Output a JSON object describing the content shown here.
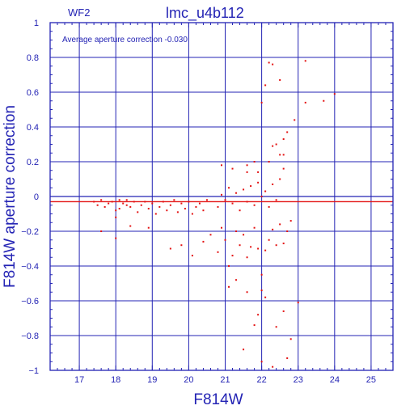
{
  "chart_data": {
    "type": "scatter",
    "title": "lmc_u4b112",
    "subtitle": "WF2",
    "annotation": "Average aperture correction   -0.030",
    "xlabel": "F814W",
    "ylabel": "F814W aperture correction",
    "xlim": [
      16.2,
      25.6
    ],
    "ylim": [
      -1.0,
      1.0
    ],
    "x_ticks": [
      17,
      18,
      19,
      20,
      21,
      22,
      23,
      24,
      25
    ],
    "x_tick_labels": [
      "17",
      "18",
      "19",
      "20",
      "21",
      "22",
      "23",
      "24",
      "25"
    ],
    "y_ticks": [
      -1,
      -0.8,
      -0.6,
      -0.4,
      -0.2,
      0,
      0.2,
      0.4,
      0.6,
      0.8,
      1
    ],
    "y_tick_labels": [
      "−1",
      "−0.8",
      "−0.6",
      "−0.4",
      "−0.2",
      "0",
      "0.2",
      "0.4",
      "0.6",
      "0.8",
      "1"
    ],
    "grid": true,
    "reference_lines": {
      "zero_line": 0,
      "average_line": -0.03
    },
    "colors": {
      "axes": "#2323b4",
      "grid": "#2323b4",
      "points": "#e31111",
      "average_line": "#e31111"
    },
    "series": [
      {
        "values": [
          [
            22.2,
            0.77
          ],
          [
            22.3,
            0.76
          ],
          [
            23.2,
            0.78
          ],
          [
            22.5,
            0.67
          ],
          [
            22.1,
            0.64
          ],
          [
            23.7,
            0.55
          ],
          [
            24.0,
            0.59
          ],
          [
            23.2,
            0.54
          ],
          [
            22.0,
            0.54
          ],
          [
            22.9,
            0.44
          ],
          [
            22.7,
            0.37
          ],
          [
            22.6,
            0.33
          ],
          [
            22.4,
            0.3
          ],
          [
            22.3,
            0.29
          ],
          [
            22.5,
            0.24
          ],
          [
            22.6,
            0.24
          ],
          [
            21.8,
            0.2
          ],
          [
            21.6,
            0.18
          ],
          [
            22.2,
            0.2
          ],
          [
            21.2,
            0.16
          ],
          [
            20.9,
            0.18
          ],
          [
            21.9,
            0.14
          ],
          [
            22.6,
            0.16
          ],
          [
            21.6,
            0.14
          ],
          [
            17.4,
            -0.03
          ],
          [
            17.5,
            -0.05
          ],
          [
            17.6,
            -0.02
          ],
          [
            17.7,
            -0.06
          ],
          [
            17.8,
            -0.04
          ],
          [
            17.9,
            -0.03
          ],
          [
            18.0,
            -0.08
          ],
          [
            18.0,
            -0.12
          ],
          [
            18.1,
            -0.02
          ],
          [
            18.1,
            -0.07
          ],
          [
            18.2,
            -0.04
          ],
          [
            18.3,
            -0.05
          ],
          [
            18.3,
            -0.02
          ],
          [
            18.4,
            -0.06
          ],
          [
            18.5,
            -0.03
          ],
          [
            18.6,
            -0.09
          ],
          [
            18.7,
            -0.05
          ],
          [
            18.8,
            -0.03
          ],
          [
            18.9,
            -0.07
          ],
          [
            19.0,
            -0.04
          ],
          [
            19.1,
            -0.1
          ],
          [
            19.2,
            -0.06
          ],
          [
            19.3,
            -0.03
          ],
          [
            19.4,
            -0.08
          ],
          [
            19.5,
            -0.05
          ],
          [
            19.6,
            -0.02
          ],
          [
            19.7,
            -0.09
          ],
          [
            19.8,
            -0.04
          ],
          [
            19.9,
            -0.07
          ],
          [
            20.0,
            -0.03
          ],
          [
            20.1,
            -0.1
          ],
          [
            20.2,
            -0.06
          ],
          [
            20.3,
            -0.04
          ],
          [
            20.4,
            -0.08
          ],
          [
            20.5,
            -0.02
          ],
          [
            17.6,
            -0.2
          ],
          [
            18.0,
            -0.24
          ],
          [
            18.4,
            -0.17
          ],
          [
            18.9,
            -0.18
          ],
          [
            19.5,
            -0.3
          ],
          [
            19.8,
            -0.28
          ],
          [
            20.1,
            -0.34
          ],
          [
            20.4,
            -0.26
          ],
          [
            20.6,
            -0.22
          ],
          [
            20.8,
            -0.32
          ],
          [
            20.9,
            -0.18
          ],
          [
            21.0,
            -0.25
          ],
          [
            21.1,
            -0.4
          ],
          [
            21.2,
            -0.34
          ],
          [
            21.3,
            -0.2
          ],
          [
            21.4,
            -0.28
          ],
          [
            21.5,
            -0.22
          ],
          [
            21.6,
            -0.35
          ],
          [
            21.7,
            -0.29
          ],
          [
            21.8,
            -0.18
          ],
          [
            21.9,
            -0.3
          ],
          [
            22.0,
            -0.45
          ],
          [
            22.1,
            -0.31
          ],
          [
            22.2,
            -0.25
          ],
          [
            22.3,
            -0.19
          ],
          [
            22.4,
            -0.28
          ],
          [
            22.5,
            -0.16
          ],
          [
            22.6,
            -0.27
          ],
          [
            22.7,
            -0.2
          ],
          [
            22.8,
            -0.14
          ],
          [
            20.8,
            -0.06
          ],
          [
            20.9,
            0.01
          ],
          [
            21.0,
            -0.02
          ],
          [
            21.1,
            0.05
          ],
          [
            21.2,
            -0.04
          ],
          [
            21.3,
            0.02
          ],
          [
            21.4,
            -0.08
          ],
          [
            21.5,
            0.04
          ],
          [
            21.6,
            -0.03
          ],
          [
            21.7,
            0.06
          ],
          [
            21.8,
            -0.05
          ],
          [
            21.9,
            0.08
          ],
          [
            22.0,
            0.0
          ],
          [
            22.1,
            0.03
          ],
          [
            22.2,
            -0.06
          ],
          [
            22.3,
            0.07
          ],
          [
            22.4,
            -0.02
          ],
          [
            22.5,
            0.1
          ],
          [
            21.1,
            -0.52
          ],
          [
            21.3,
            -0.48
          ],
          [
            21.6,
            -0.55
          ],
          [
            21.8,
            -0.74
          ],
          [
            22.0,
            -0.54
          ],
          [
            22.1,
            -0.58
          ],
          [
            22.4,
            -0.75
          ],
          [
            22.6,
            -0.66
          ],
          [
            22.8,
            -0.82
          ],
          [
            23.0,
            -0.61
          ],
          [
            21.5,
            -0.88
          ],
          [
            22.0,
            -0.95
          ],
          [
            22.3,
            -0.98
          ],
          [
            22.7,
            -0.93
          ],
          [
            21.9,
            -0.68
          ]
        ]
      }
    ]
  }
}
